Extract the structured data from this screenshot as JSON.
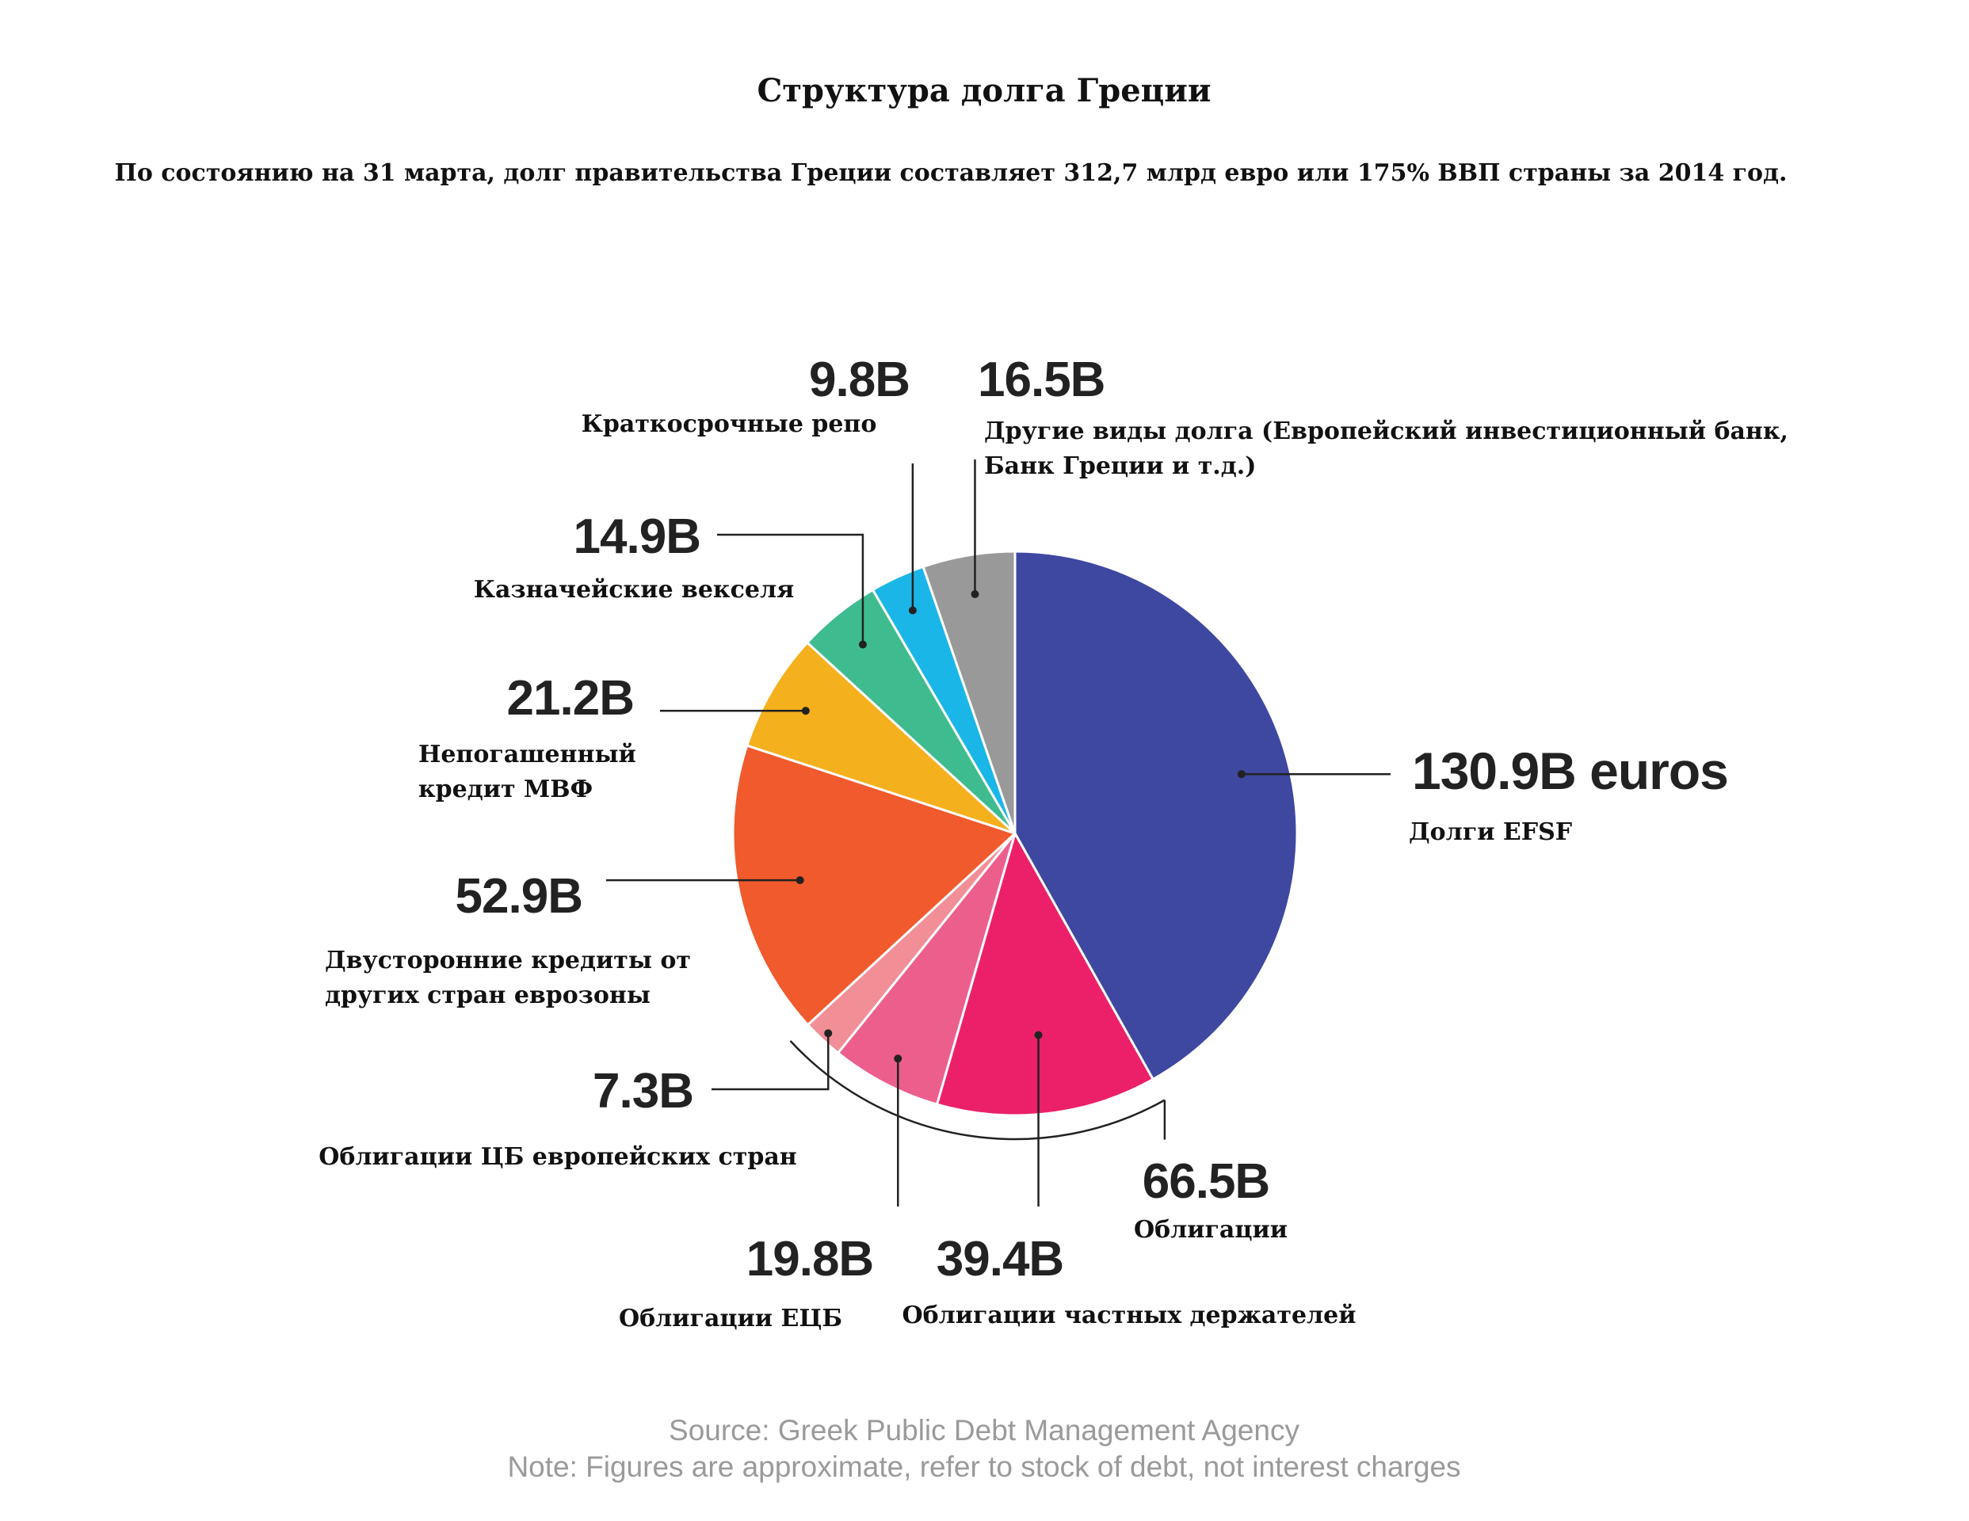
{
  "chart_data": {
    "type": "pie",
    "title": "Структура долга Греции",
    "subtitle": "По состоянию на 31 марта, долг правительства Греции составляет 312,7 млрд евро или 175% ВВП страны за 2014 год.",
    "unit": "B",
    "slices": [
      {
        "value_label": "130.9B euros",
        "label_lines": [
          "Долги EFSF"
        ],
        "value": 130.9,
        "color": "#3e48a0"
      },
      {
        "value_label": "39.4B",
        "label_lines": [
          "Облигации частных держателей"
        ],
        "value": 39.4,
        "color": "#ec2069"
      },
      {
        "value_label": "19.8B",
        "label_lines": [
          "Облигации ЕЦБ"
        ],
        "value": 19.8,
        "color": "#ec5f8c"
      },
      {
        "value_label": "7.3B",
        "label_lines": [
          "Облигации ЦБ европейских стран"
        ],
        "value": 7.3,
        "color": "#f18e96"
      },
      {
        "value_label": "52.9B",
        "label_lines": [
          "Двусторонние кредиты от",
          "других стран еврозоны"
        ],
        "value": 52.9,
        "color": "#f05a2c"
      },
      {
        "value_label": "21.2B",
        "label_lines": [
          "Непогашенный",
          "кредит МВФ"
        ],
        "value": 21.2,
        "color": "#f4b01d"
      },
      {
        "value_label": "14.9B",
        "label_lines": [
          "Казначейские векселя"
        ],
        "value": 14.9,
        "color": "#3fbc8f"
      },
      {
        "value_label": "9.8B",
        "label_lines": [
          "Краткосрочные репо"
        ],
        "value": 9.8,
        "color": "#1bb6e8"
      },
      {
        "value_label": "16.5B",
        "label_lines": [
          "Другие виды долга (Европейский инвестиционный банк,",
          "Банк Греции и т.д.)"
        ],
        "value": 16.5,
        "color": "#999999"
      }
    ],
    "group": {
      "value_label": "66.5B",
      "label": "Облигации",
      "value": 66.5,
      "members": [
        "Облигации частных держателей",
        "Облигации ЕЦБ",
        "Облигации ЦБ европейских стран"
      ]
    },
    "source": "Source: Greek Public Debt Management Agency",
    "note": "Note: Figures are approximate, refer to stock of debt, not interest charges"
  }
}
